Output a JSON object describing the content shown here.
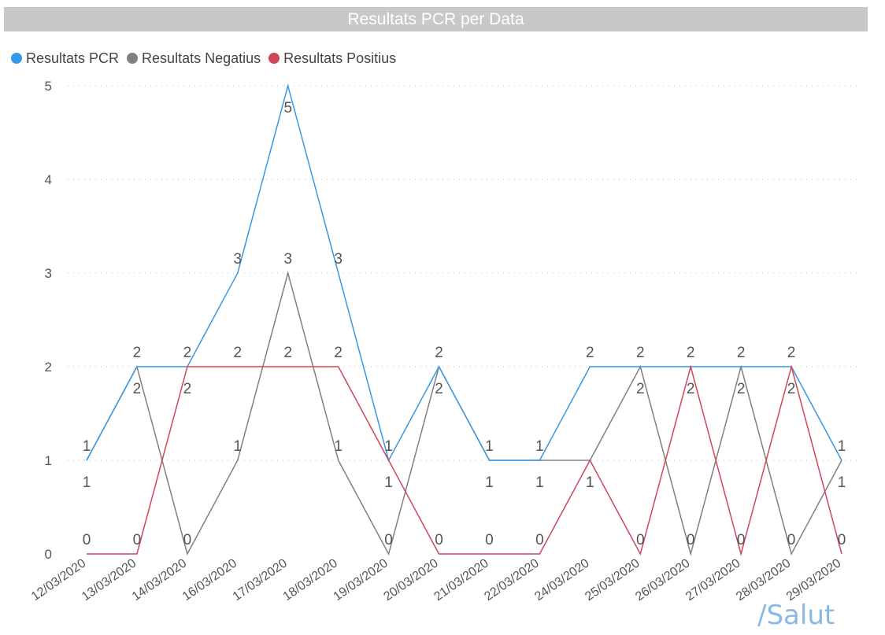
{
  "chart_data": {
    "type": "line",
    "title": "Resultats PCR per Data",
    "categories": [
      "12/03/2020",
      "13/03/2020",
      "14/03/2020",
      "16/03/2020",
      "17/03/2020",
      "18/03/2020",
      "19/03/2020",
      "20/03/2020",
      "21/03/2020",
      "22/03/2020",
      "24/03/2020",
      "25/03/2020",
      "26/03/2020",
      "27/03/2020",
      "28/03/2020",
      "29/03/2020"
    ],
    "series": [
      {
        "name": "Resultats PCR",
        "color": "#3599e8",
        "values": [
          1,
          2,
          2,
          3,
          5,
          3,
          1,
          2,
          1,
          1,
          2,
          2,
          2,
          2,
          2,
          1
        ]
      },
      {
        "name": "Resultats Negatius",
        "color": "#808080",
        "values": [
          1,
          2,
          0,
          1,
          3,
          1,
          0,
          2,
          1,
          1,
          1,
          2,
          0,
          2,
          0,
          1
        ]
      },
      {
        "name": "Resultats Positius",
        "color": "#d0455a",
        "values": [
          0,
          0,
          2,
          2,
          2,
          2,
          1,
          0,
          0,
          0,
          1,
          0,
          2,
          0,
          2,
          0
        ]
      }
    ],
    "yticks": [
      0,
      1,
      2,
      3,
      4,
      5
    ],
    "ylim": [
      0,
      5
    ],
    "grid": true,
    "legend": "top-left",
    "data_labels": true
  },
  "branding": {
    "logo_text": "/Salut"
  }
}
